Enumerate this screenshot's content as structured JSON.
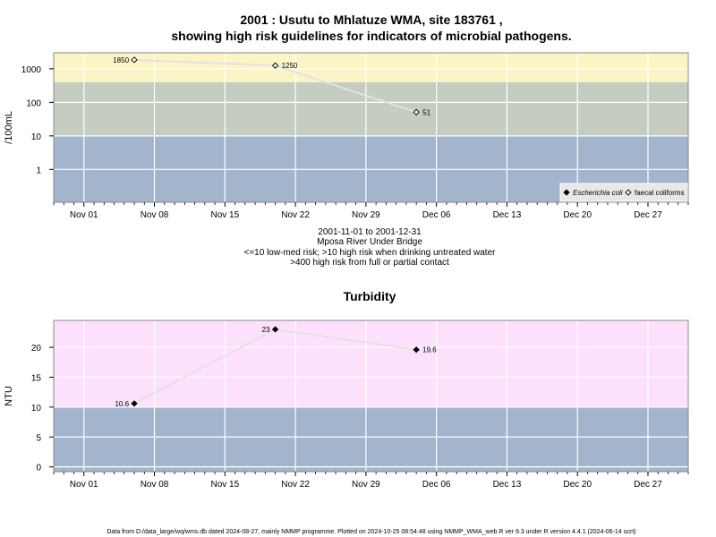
{
  "page": {
    "title_line1": "2001 : Usutu to Mhlatuze WMA, site 183761 ,",
    "title_line2": "showing high risk guidelines for indicators of microbial pathogens.",
    "subtitle_lines": [
      "2001-11-01 to 2001-12-31",
      "Mposa River Under Bridge",
      "<=10 low-med risk; >10 high risk when drinking untreated water",
      ">400 high risk from full or partial contact"
    ],
    "footer": "Data from D:/data_large/wq/wms.db dated 2024-08-27, mainly NMMP programme. Plotted on 2024-10-25 08:54:48 using NMMP_WMA_web.R ver 9.3 under R version 4.4.1 (2024-06-14 ucrt)"
  },
  "chart_data": [
    {
      "type": "scatter",
      "ylabel": "/100mL",
      "y_scale": "log",
      "x_range": [
        "2001-10-29",
        "2001-12-31"
      ],
      "x_ticks": [
        "Nov 01",
        "Nov 08",
        "Nov 15",
        "Nov 22",
        "Nov 29",
        "Dec 06",
        "Dec 13",
        "Dec 20",
        "Dec 27"
      ],
      "y_ticks": [
        "1",
        "10",
        "100",
        "1000"
      ],
      "bands": [
        {
          "from": 0.1,
          "to": 10,
          "color": "#a3b5cc"
        },
        {
          "from": 10,
          "to": 400,
          "color": "#c4cdc0"
        },
        {
          "from": 400,
          "to": 3000,
          "color": "#fbf5c6"
        }
      ],
      "grid": true,
      "legend_position": "bottom-right",
      "legend": [
        {
          "name": "Escherichia coli",
          "marker": "filled-diamond"
        },
        {
          "name": "faecal coliforms",
          "marker": "open-diamond"
        }
      ],
      "series": [
        {
          "name": "faecal coliforms",
          "marker": "open-diamond",
          "points": [
            {
              "date": "2001-11-06",
              "value": 1850,
              "label": "1850",
              "label_side": "left"
            },
            {
              "date": "2001-11-20",
              "value": 1250,
              "label": "1250",
              "label_side": "right"
            },
            {
              "date": "2001-12-04",
              "value": 51,
              "label": "51",
              "label_side": "right"
            }
          ]
        }
      ]
    },
    {
      "type": "scatter",
      "title": "Turbidity",
      "ylabel": "NTU",
      "x_range": [
        "2001-10-29",
        "2001-12-31"
      ],
      "x_ticks": [
        "Nov 01",
        "Nov 08",
        "Nov 15",
        "Nov 22",
        "Nov 29",
        "Dec 06",
        "Dec 13",
        "Dec 20",
        "Dec 27"
      ],
      "ylim": [
        -0.8,
        24.5
      ],
      "y_ticks": [
        "0",
        "5",
        "10",
        "15",
        "20"
      ],
      "bands": [
        {
          "from": -0.8,
          "to": 10,
          "color": "#a3b5cc"
        },
        {
          "from": 10,
          "to": 24.5,
          "color": "#fde0fb"
        }
      ],
      "grid": true,
      "series": [
        {
          "name": "",
          "marker": "filled-diamond",
          "points": [
            {
              "date": "2001-11-06",
              "value": 10.6,
              "label": "10.6",
              "label_side": "left"
            },
            {
              "date": "2001-11-20",
              "value": 23,
              "label": "23",
              "label_side": "left"
            },
            {
              "date": "2001-12-04",
              "value": 19.6,
              "label": "19.6",
              "label_side": "right"
            }
          ]
        }
      ]
    }
  ]
}
